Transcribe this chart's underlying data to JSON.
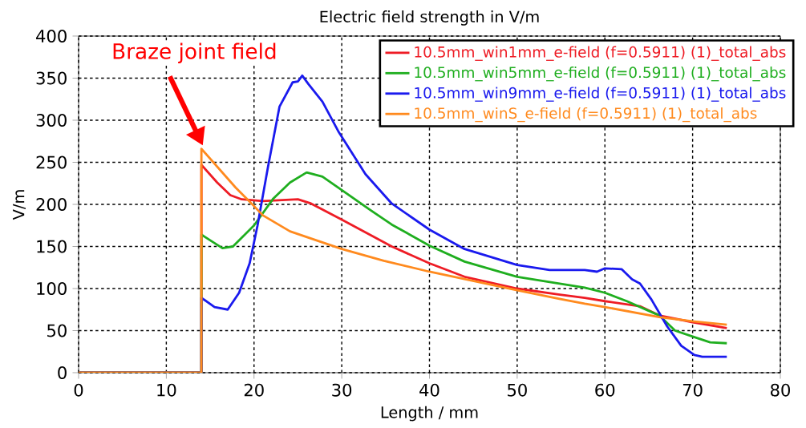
{
  "chart_data": {
    "type": "line",
    "title": "Electric field strength in V/m",
    "xlabel": "Length / mm",
    "ylabel": "V/m",
    "xlim": [
      0,
      80
    ],
    "ylim": [
      0,
      400
    ],
    "xticks": [
      0,
      10,
      20,
      30,
      40,
      50,
      60,
      70,
      80
    ],
    "yticks": [
      0,
      50,
      100,
      150,
      200,
      250,
      300,
      350,
      400
    ],
    "grid": true,
    "legend": "top right",
    "marker": "none",
    "line_style": "solid",
    "annotations": [
      "Braze joint field"
    ],
    "series": [
      {
        "name": "10.5mm_win1mm_e-field (f=0.5911) (1)_total_abs",
        "color": "#ee1c25",
        "x": [
          0,
          14,
          14,
          15.8,
          17.3,
          18.6,
          21,
          25,
          26.5,
          30,
          35.7,
          40,
          44,
          50,
          54.7,
          57.7,
          60,
          64,
          66.2,
          70,
          73.9
        ],
        "values": [
          0,
          0,
          247,
          226,
          211,
          206,
          204,
          206,
          201,
          182,
          150,
          130,
          114,
          100,
          93,
          89,
          85,
          79,
          68,
          60,
          53
        ]
      },
      {
        "name": "10.5mm_win5mm_e-field (f=0.5911) (1)_total_abs",
        "color": "#1fae1f",
        "x": [
          0,
          14,
          14,
          16.4,
          17.6,
          20,
          22.2,
          24.1,
          26,
          27.8,
          30,
          33.3,
          35.7,
          40,
          44,
          50,
          54.7,
          57.7,
          60,
          62.5,
          66.2,
          68,
          70,
          72,
          73.9
        ],
        "values": [
          0,
          0,
          164,
          148,
          150,
          175,
          207,
          226,
          238,
          233,
          217,
          193,
          176,
          151,
          132,
          114,
          106,
          101,
          95,
          85,
          68,
          50,
          43,
          36,
          35
        ]
      },
      {
        "name": "10.5mm_win9mm_e-field (f=0.5911) (1)_total_abs",
        "color": "#1a1aee",
        "x": [
          0,
          14,
          14,
          15.5,
          17,
          18.3,
          19.5,
          20.4,
          21.6,
          22.9,
          24.4,
          25,
          25.5,
          26.2,
          27.8,
          29.6,
          32.7,
          35.7,
          40,
          44,
          50,
          53.7,
          57.7,
          59.1,
          60,
          61.9,
          63.1,
          64,
          65.3,
          67.1,
          68.7,
          70.2,
          71.1,
          73.9
        ],
        "values": [
          0,
          0,
          89,
          78,
          75,
          95,
          130,
          175,
          245,
          316,
          345,
          346,
          353,
          343,
          322,
          287,
          236,
          201,
          170,
          147,
          128,
          122,
          122,
          120,
          124,
          123,
          111,
          106,
          87,
          55,
          32,
          21,
          19,
          19
        ]
      },
      {
        "name": "10.5mm_winS_e-field (f=0.5911) (1)_total_abs",
        "color": "#ff8a1e",
        "x": [
          0,
          14,
          14,
          17.9,
          20,
          21,
          24.1,
          30,
          34.8,
          40,
          50,
          54.7,
          57.7,
          60,
          66.2,
          70,
          73.9
        ],
        "values": [
          0,
          0,
          266,
          220,
          198,
          187,
          168,
          147,
          133,
          120,
          98,
          88,
          82,
          78,
          66,
          61,
          57
        ]
      }
    ]
  }
}
